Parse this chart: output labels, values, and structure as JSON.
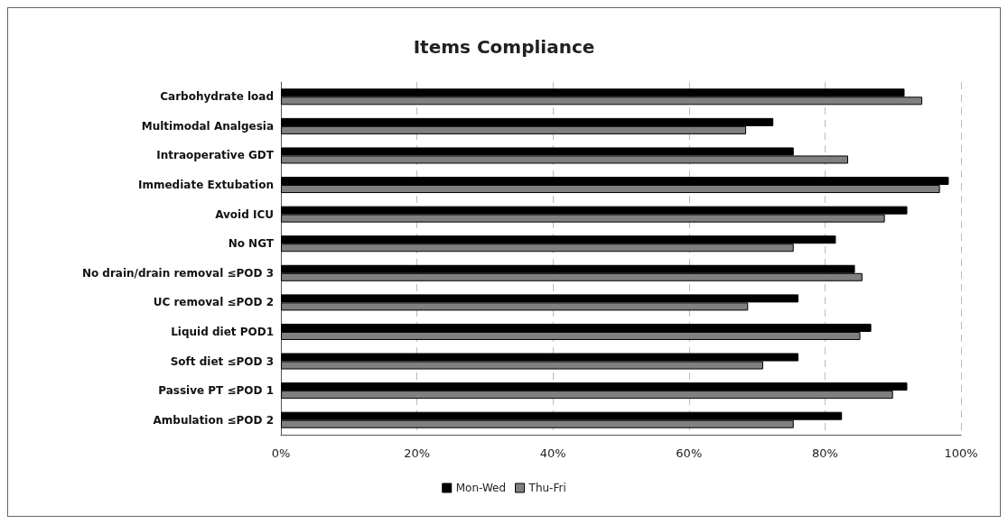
{
  "chart_data": {
    "type": "bar",
    "orientation": "horizontal",
    "title": "Items Compliance",
    "categories": [
      "Carbohydrate load",
      "Multimodal Analgesia",
      "Intraoperative GDT",
      "Immediate Extubation",
      "Avoid ICU",
      "No NGT",
      "No drain/drain removal ≤POD 3",
      "UC removal ≤POD 2",
      "Liquid diet POD1",
      "Soft diet ≤POD 3",
      "Passive PT ≤POD 1",
      "Ambulation ≤POD 2"
    ],
    "series": [
      {
        "name": "Mon-Wed",
        "color": "#000000",
        "values": [
          91.7,
          72.4,
          75.4,
          98.2,
          92.1,
          81.6,
          84.4,
          76.1,
          86.8,
          76.1,
          92.1,
          82.5
        ]
      },
      {
        "name": "Thu-Fri",
        "color": "#808080",
        "values": [
          94.3,
          68.4,
          83.4,
          96.9,
          88.8,
          75.4,
          85.5,
          68.7,
          85.2,
          70.9,
          90.0,
          75.4
        ]
      }
    ],
    "xlim": [
      0,
      100
    ],
    "xticks": [
      {
        "value": 0,
        "label": "0%"
      },
      {
        "value": 20,
        "label": "20%"
      },
      {
        "value": 40,
        "label": "40%"
      },
      {
        "value": 60,
        "label": "60%"
      },
      {
        "value": 80,
        "label": "80%"
      },
      {
        "value": 100,
        "label": "100%"
      }
    ],
    "grid": "x",
    "legend": "bottom"
  }
}
